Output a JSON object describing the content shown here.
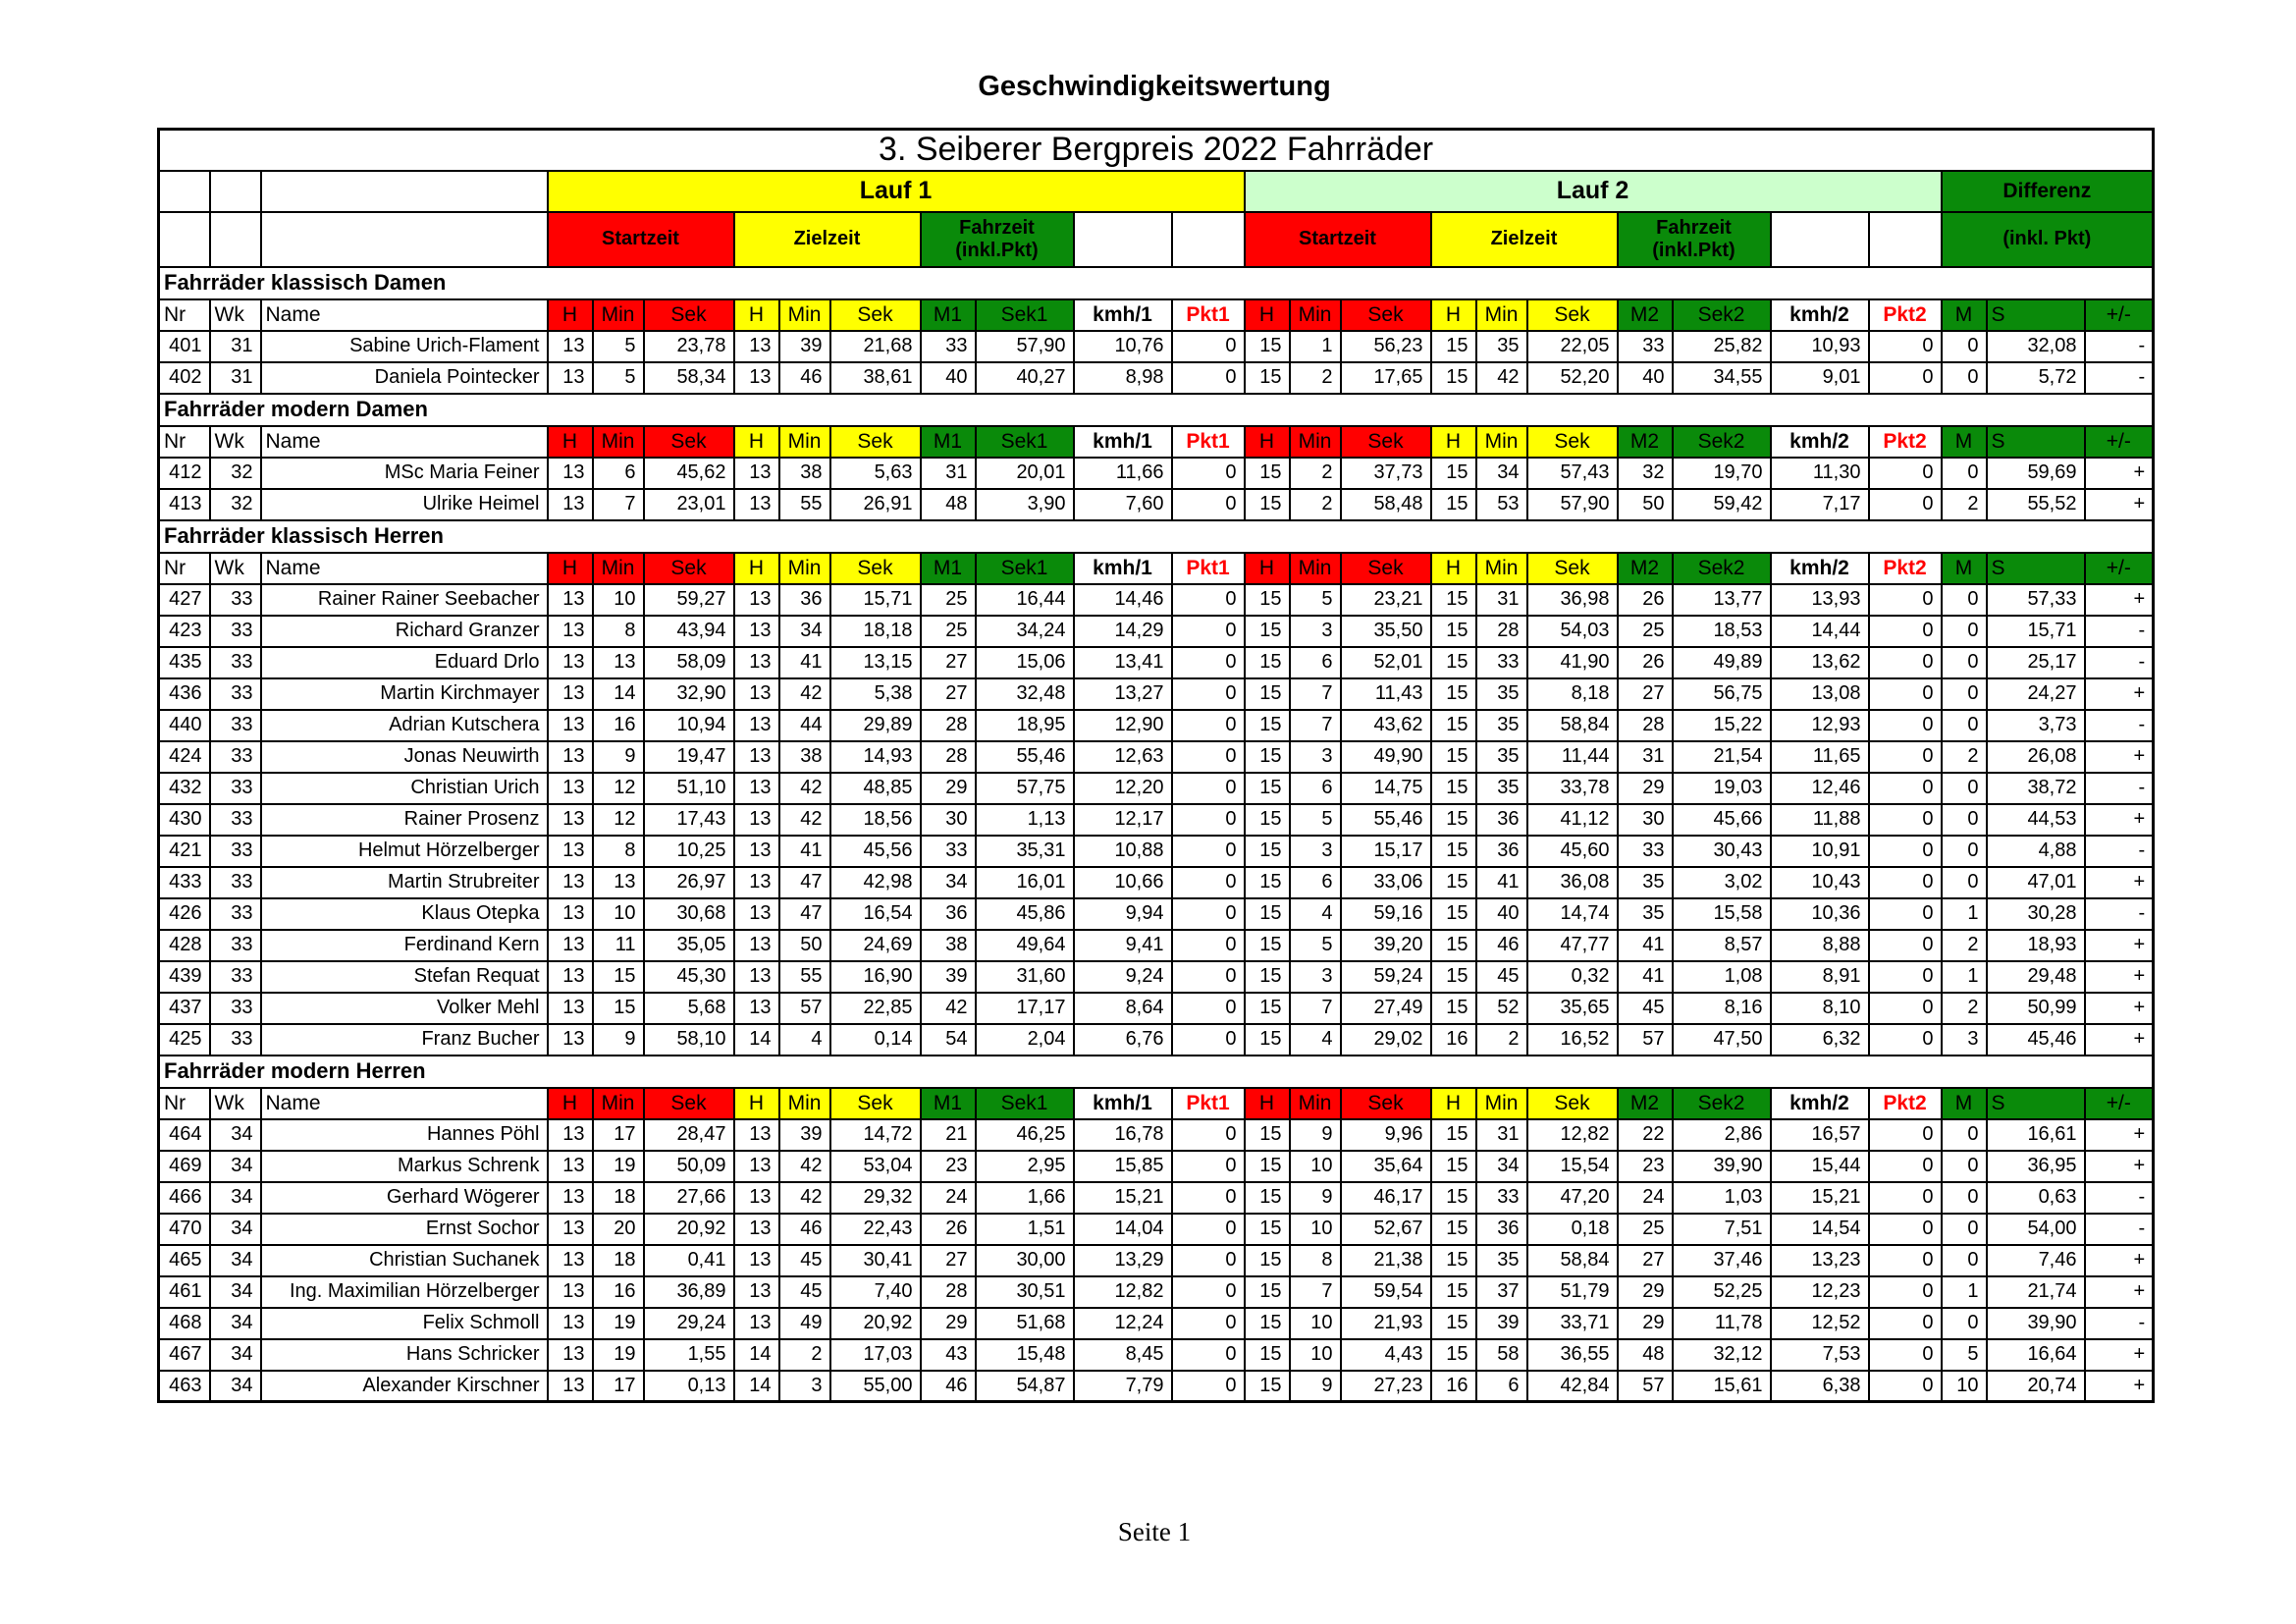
{
  "page": {
    "title": "Geschwindigkeitswertung",
    "footer": "Seite 1"
  },
  "colors": {
    "red": "#ff0000",
    "yellow": "#ffff00",
    "green": "#0a8a0a",
    "light_green": "#ccffcc"
  },
  "table": {
    "title": "3. Seiberer Bergpreis 2022 Fahrräder",
    "lauf1_label": "Lauf 1",
    "lauf2_label": "Lauf 2",
    "differenz_label": "Differenz",
    "differenz_sub_label": "(inkl. Pkt)",
    "startzeit_label": "Startzeit",
    "zielzeit_label": "Zielzeit",
    "fahrzeit_label": "Fahrzeit\n(inkl.Pkt)",
    "column_headers": [
      "Nr",
      "Wk",
      "Name",
      "H",
      "Min",
      "Sek",
      "H",
      "Min",
      "Sek",
      "M1",
      "Sek1",
      "kmh/1",
      "Pkt1",
      "H",
      "Min",
      "Sek",
      "H",
      "Min",
      "Sek",
      "M2",
      "Sek2",
      "kmh/2",
      "Pkt2",
      "M",
      "S",
      "+/-"
    ],
    "sections": [
      {
        "title": "Fahrräder klassisch Damen",
        "rows": [
          [
            "401",
            "31",
            "Sabine Urich-Flament",
            "13",
            "5",
            "23,78",
            "13",
            "39",
            "21,68",
            "33",
            "57,90",
            "10,76",
            "0",
            "15",
            "1",
            "56,23",
            "15",
            "35",
            "22,05",
            "33",
            "25,82",
            "10,93",
            "0",
            "0",
            "32,08",
            "-"
          ],
          [
            "402",
            "31",
            "Daniela Pointecker",
            "13",
            "5",
            "58,34",
            "13",
            "46",
            "38,61",
            "40",
            "40,27",
            "8,98",
            "0",
            "15",
            "2",
            "17,65",
            "15",
            "42",
            "52,20",
            "40",
            "34,55",
            "9,01",
            "0",
            "0",
            "5,72",
            "-"
          ]
        ]
      },
      {
        "title": "Fahrräder modern Damen",
        "rows": [
          [
            "412",
            "32",
            "MSc Maria Feiner",
            "13",
            "6",
            "45,62",
            "13",
            "38",
            "5,63",
            "31",
            "20,01",
            "11,66",
            "0",
            "15",
            "2",
            "37,73",
            "15",
            "34",
            "57,43",
            "32",
            "19,70",
            "11,30",
            "0",
            "0",
            "59,69",
            "+"
          ],
          [
            "413",
            "32",
            "Ulrike Heimel",
            "13",
            "7",
            "23,01",
            "13",
            "55",
            "26,91",
            "48",
            "3,90",
            "7,60",
            "0",
            "15",
            "2",
            "58,48",
            "15",
            "53",
            "57,90",
            "50",
            "59,42",
            "7,17",
            "0",
            "2",
            "55,52",
            "+"
          ]
        ]
      },
      {
        "title": "Fahrräder klassisch Herren",
        "rows": [
          [
            "427",
            "33",
            "Rainer Rainer Seebacher",
            "13",
            "10",
            "59,27",
            "13",
            "36",
            "15,71",
            "25",
            "16,44",
            "14,46",
            "0",
            "15",
            "5",
            "23,21",
            "15",
            "31",
            "36,98",
            "26",
            "13,77",
            "13,93",
            "0",
            "0",
            "57,33",
            "+"
          ],
          [
            "423",
            "33",
            "Richard Granzer",
            "13",
            "8",
            "43,94",
            "13",
            "34",
            "18,18",
            "25",
            "34,24",
            "14,29",
            "0",
            "15",
            "3",
            "35,50",
            "15",
            "28",
            "54,03",
            "25",
            "18,53",
            "14,44",
            "0",
            "0",
            "15,71",
            "-"
          ],
          [
            "435",
            "33",
            "Eduard Drlo",
            "13",
            "13",
            "58,09",
            "13",
            "41",
            "13,15",
            "27",
            "15,06",
            "13,41",
            "0",
            "15",
            "6",
            "52,01",
            "15",
            "33",
            "41,90",
            "26",
            "49,89",
            "13,62",
            "0",
            "0",
            "25,17",
            "-"
          ],
          [
            "436",
            "33",
            "Martin Kirchmayer",
            "13",
            "14",
            "32,90",
            "13",
            "42",
            "5,38",
            "27",
            "32,48",
            "13,27",
            "0",
            "15",
            "7",
            "11,43",
            "15",
            "35",
            "8,18",
            "27",
            "56,75",
            "13,08",
            "0",
            "0",
            "24,27",
            "+"
          ],
          [
            "440",
            "33",
            "Adrian Kutschera",
            "13",
            "16",
            "10,94",
            "13",
            "44",
            "29,89",
            "28",
            "18,95",
            "12,90",
            "0",
            "15",
            "7",
            "43,62",
            "15",
            "35",
            "58,84",
            "28",
            "15,22",
            "12,93",
            "0",
            "0",
            "3,73",
            "-"
          ],
          [
            "424",
            "33",
            "Jonas Neuwirth",
            "13",
            "9",
            "19,47",
            "13",
            "38",
            "14,93",
            "28",
            "55,46",
            "12,63",
            "0",
            "15",
            "3",
            "49,90",
            "15",
            "35",
            "11,44",
            "31",
            "21,54",
            "11,65",
            "0",
            "2",
            "26,08",
            "+"
          ],
          [
            "432",
            "33",
            "Christian Urich",
            "13",
            "12",
            "51,10",
            "13",
            "42",
            "48,85",
            "29",
            "57,75",
            "12,20",
            "0",
            "15",
            "6",
            "14,75",
            "15",
            "35",
            "33,78",
            "29",
            "19,03",
            "12,46",
            "0",
            "0",
            "38,72",
            "-"
          ],
          [
            "430",
            "33",
            "Rainer Prosenz",
            "13",
            "12",
            "17,43",
            "13",
            "42",
            "18,56",
            "30",
            "1,13",
            "12,17",
            "0",
            "15",
            "5",
            "55,46",
            "15",
            "36",
            "41,12",
            "30",
            "45,66",
            "11,88",
            "0",
            "0",
            "44,53",
            "+"
          ],
          [
            "421",
            "33",
            "Helmut Hörzelberger",
            "13",
            "8",
            "10,25",
            "13",
            "41",
            "45,56",
            "33",
            "35,31",
            "10,88",
            "0",
            "15",
            "3",
            "15,17",
            "15",
            "36",
            "45,60",
            "33",
            "30,43",
            "10,91",
            "0",
            "0",
            "4,88",
            "-"
          ],
          [
            "433",
            "33",
            "Martin Strubreiter",
            "13",
            "13",
            "26,97",
            "13",
            "47",
            "42,98",
            "34",
            "16,01",
            "10,66",
            "0",
            "15",
            "6",
            "33,06",
            "15",
            "41",
            "36,08",
            "35",
            "3,02",
            "10,43",
            "0",
            "0",
            "47,01",
            "+"
          ],
          [
            "426",
            "33",
            "Klaus Otepka",
            "13",
            "10",
            "30,68",
            "13",
            "47",
            "16,54",
            "36",
            "45,86",
            "9,94",
            "0",
            "15",
            "4",
            "59,16",
            "15",
            "40",
            "14,74",
            "35",
            "15,58",
            "10,36",
            "0",
            "1",
            "30,28",
            "-"
          ],
          [
            "428",
            "33",
            "Ferdinand Kern",
            "13",
            "11",
            "35,05",
            "13",
            "50",
            "24,69",
            "38",
            "49,64",
            "9,41",
            "0",
            "15",
            "5",
            "39,20",
            "15",
            "46",
            "47,77",
            "41",
            "8,57",
            "8,88",
            "0",
            "2",
            "18,93",
            "+"
          ],
          [
            "439",
            "33",
            "Stefan Requat",
            "13",
            "15",
            "45,30",
            "13",
            "55",
            "16,90",
            "39",
            "31,60",
            "9,24",
            "0",
            "15",
            "3",
            "59,24",
            "15",
            "45",
            "0,32",
            "41",
            "1,08",
            "8,91",
            "0",
            "1",
            "29,48",
            "+"
          ],
          [
            "437",
            "33",
            "Volker Mehl",
            "13",
            "15",
            "5,68",
            "13",
            "57",
            "22,85",
            "42",
            "17,17",
            "8,64",
            "0",
            "15",
            "7",
            "27,49",
            "15",
            "52",
            "35,65",
            "45",
            "8,16",
            "8,10",
            "0",
            "2",
            "50,99",
            "+"
          ],
          [
            "425",
            "33",
            "Franz Bucher",
            "13",
            "9",
            "58,10",
            "14",
            "4",
            "0,14",
            "54",
            "2,04",
            "6,76",
            "0",
            "15",
            "4",
            "29,02",
            "16",
            "2",
            "16,52",
            "57",
            "47,50",
            "6,32",
            "0",
            "3",
            "45,46",
            "+"
          ]
        ]
      },
      {
        "title": "Fahrräder modern Herren",
        "rows": [
          [
            "464",
            "34",
            "Hannes Pöhl",
            "13",
            "17",
            "28,47",
            "13",
            "39",
            "14,72",
            "21",
            "46,25",
            "16,78",
            "0",
            "15",
            "9",
            "9,96",
            "15",
            "31",
            "12,82",
            "22",
            "2,86",
            "16,57",
            "0",
            "0",
            "16,61",
            "+"
          ],
          [
            "469",
            "34",
            "Markus Schrenk",
            "13",
            "19",
            "50,09",
            "13",
            "42",
            "53,04",
            "23",
            "2,95",
            "15,85",
            "0",
            "15",
            "10",
            "35,64",
            "15",
            "34",
            "15,54",
            "23",
            "39,90",
            "15,44",
            "0",
            "0",
            "36,95",
            "+"
          ],
          [
            "466",
            "34",
            "Gerhard Wögerer",
            "13",
            "18",
            "27,66",
            "13",
            "42",
            "29,32",
            "24",
            "1,66",
            "15,21",
            "0",
            "15",
            "9",
            "46,17",
            "15",
            "33",
            "47,20",
            "24",
            "1,03",
            "15,21",
            "0",
            "0",
            "0,63",
            "-"
          ],
          [
            "470",
            "34",
            "Ernst Sochor",
            "13",
            "20",
            "20,92",
            "13",
            "46",
            "22,43",
            "26",
            "1,51",
            "14,04",
            "0",
            "15",
            "10",
            "52,67",
            "15",
            "36",
            "0,18",
            "25",
            "7,51",
            "14,54",
            "0",
            "0",
            "54,00",
            "-"
          ],
          [
            "465",
            "34",
            "Christian Suchanek",
            "13",
            "18",
            "0,41",
            "13",
            "45",
            "30,41",
            "27",
            "30,00",
            "13,29",
            "0",
            "15",
            "8",
            "21,38",
            "15",
            "35",
            "58,84",
            "27",
            "37,46",
            "13,23",
            "0",
            "0",
            "7,46",
            "+"
          ],
          [
            "461",
            "34",
            "Ing. Maximilian Hörzelberger",
            "13",
            "16",
            "36,89",
            "13",
            "45",
            "7,40",
            "28",
            "30,51",
            "12,82",
            "0",
            "15",
            "7",
            "59,54",
            "15",
            "37",
            "51,79",
            "29",
            "52,25",
            "12,23",
            "0",
            "1",
            "21,74",
            "+"
          ],
          [
            "468",
            "34",
            "Felix Schmoll",
            "13",
            "19",
            "29,24",
            "13",
            "49",
            "20,92",
            "29",
            "51,68",
            "12,24",
            "0",
            "15",
            "10",
            "21,93",
            "15",
            "39",
            "33,71",
            "29",
            "11,78",
            "12,52",
            "0",
            "0",
            "39,90",
            "-"
          ],
          [
            "467",
            "34",
            "Hans Schricker",
            "13",
            "19",
            "1,55",
            "14",
            "2",
            "17,03",
            "43",
            "15,48",
            "8,45",
            "0",
            "15",
            "10",
            "4,43",
            "15",
            "58",
            "36,55",
            "48",
            "32,12",
            "7,53",
            "0",
            "5",
            "16,64",
            "+"
          ],
          [
            "463",
            "34",
            "Alexander Kirschner",
            "13",
            "17",
            "0,13",
            "14",
            "3",
            "55,00",
            "46",
            "54,87",
            "7,79",
            "0",
            "15",
            "9",
            "27,23",
            "16",
            "6",
            "42,84",
            "57",
            "15,61",
            "6,38",
            "0",
            "10",
            "20,74",
            "+"
          ]
        ]
      }
    ]
  }
}
